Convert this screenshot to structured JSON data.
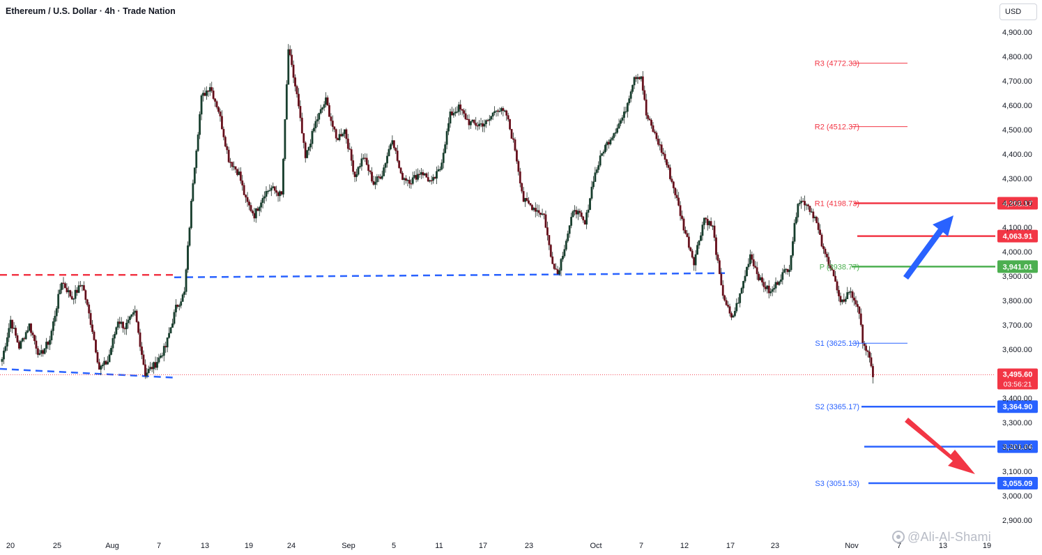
{
  "header": {
    "title": "Ethereum / U.S. Dollar · 4h · Trade Nation",
    "currency": "USD"
  },
  "watermark": "@Ali-Al-Shami",
  "colors": {
    "up": "#0f1a14",
    "down": "#0f1a14",
    "resistance": "#f23645",
    "support": "#2962ff",
    "pivot": "#4caf50",
    "dashed_red": "#f23645",
    "dashed_blue": "#2962ff"
  },
  "chart_data": {
    "type": "candlestick",
    "title": "Ethereum / U.S. Dollar · 4h · Trade Nation",
    "ylim": [
      2850,
      4960
    ],
    "y_ticks": [
      "4,900.00",
      "4,800.00",
      "4,700.00",
      "4,600.00",
      "4,500.00",
      "4,400.00",
      "4,300.00",
      "4,200.00",
      "4,100.00",
      "4,000.00",
      "3,900.00",
      "3,800.00",
      "3,700.00",
      "3,600.00",
      "3,400.00",
      "3,300.00",
      "3,200.00",
      "3,100.00",
      "3,000.00",
      "2,900.00"
    ],
    "x_ticks": [
      "20",
      "25",
      "Aug",
      "7",
      "13",
      "19",
      "24",
      "Sep",
      "5",
      "11",
      "17",
      "23",
      "Oct",
      "7",
      "12",
      "17",
      "23",
      "Nov",
      "7",
      "13",
      "19"
    ],
    "path": [
      [
        0,
        3560
      ],
      [
        5,
        3720
      ],
      [
        10,
        3610
      ],
      [
        16,
        3700
      ],
      [
        22,
        3570
      ],
      [
        28,
        3640
      ],
      [
        35,
        3880
      ],
      [
        41,
        3810
      ],
      [
        47,
        3870
      ],
      [
        53,
        3680
      ],
      [
        57,
        3520
      ],
      [
        62,
        3550
      ],
      [
        68,
        3720
      ],
      [
        72,
        3690
      ],
      [
        78,
        3750
      ],
      [
        84,
        3500
      ],
      [
        90,
        3540
      ],
      [
        96,
        3610
      ],
      [
        102,
        3770
      ],
      [
        107,
        3830
      ],
      [
        112,
        4290
      ],
      [
        117,
        4630
      ],
      [
        122,
        4680
      ],
      [
        127,
        4580
      ],
      [
        133,
        4380
      ],
      [
        139,
        4320
      ],
      [
        143,
        4210
      ],
      [
        148,
        4150
      ],
      [
        154,
        4240
      ],
      [
        158,
        4260
      ],
      [
        164,
        4230
      ],
      [
        168,
        4830
      ],
      [
        173,
        4640
      ],
      [
        178,
        4380
      ],
      [
        184,
        4530
      ],
      [
        190,
        4620
      ],
      [
        196,
        4460
      ],
      [
        201,
        4500
      ],
      [
        207,
        4310
      ],
      [
        212,
        4390
      ],
      [
        218,
        4280
      ],
      [
        223,
        4320
      ],
      [
        229,
        4470
      ],
      [
        234,
        4310
      ],
      [
        240,
        4290
      ],
      [
        246,
        4330
      ],
      [
        252,
        4280
      ],
      [
        257,
        4340
      ],
      [
        263,
        4560
      ],
      [
        268,
        4590
      ],
      [
        274,
        4530
      ],
      [
        279,
        4520
      ],
      [
        285,
        4530
      ],
      [
        290,
        4590
      ],
      [
        296,
        4560
      ],
      [
        301,
        4420
      ],
      [
        306,
        4210
      ],
      [
        312,
        4180
      ],
      [
        318,
        4150
      ],
      [
        322,
        3980
      ],
      [
        326,
        3910
      ],
      [
        331,
        4050
      ],
      [
        336,
        4180
      ],
      [
        342,
        4110
      ],
      [
        347,
        4300
      ],
      [
        353,
        4420
      ],
      [
        359,
        4490
      ],
      [
        365,
        4560
      ],
      [
        371,
        4720
      ],
      [
        375,
        4720
      ],
      [
        378,
        4560
      ],
      [
        383,
        4480
      ],
      [
        389,
        4380
      ],
      [
        395,
        4240
      ],
      [
        400,
        4100
      ],
      [
        406,
        3960
      ],
      [
        412,
        4140
      ],
      [
        417,
        4100
      ],
      [
        422,
        3850
      ],
      [
        428,
        3720
      ],
      [
        433,
        3820
      ],
      [
        439,
        3990
      ],
      [
        445,
        3880
      ],
      [
        451,
        3830
      ],
      [
        457,
        3900
      ],
      [
        462,
        3940
      ],
      [
        467,
        4210
      ],
      [
        472,
        4200
      ],
      [
        477,
        4140
      ],
      [
        482,
        4000
      ],
      [
        487,
        3930
      ],
      [
        492,
        3780
      ],
      [
        497,
        3840
      ],
      [
        502,
        3780
      ],
      [
        505,
        3640
      ],
      [
        508,
        3580
      ],
      [
        511,
        3495
      ]
    ],
    "levels": [
      {
        "name": "R3",
        "label": "R3 (4772.33)",
        "price": 4772.33,
        "color": "#f23645",
        "badge": ""
      },
      {
        "name": "R2",
        "label": "R2 (4512.37)",
        "price": 4512.37,
        "color": "#f23645",
        "badge": ""
      },
      {
        "name": "R1",
        "label": "R1 (4198.73)",
        "price": 4198.73,
        "color": "#f23645",
        "badge": "4,202.17"
      },
      {
        "name": "level-4063",
        "label": "",
        "price": 4063.91,
        "color": "#f23645",
        "badge": "4,063.91"
      },
      {
        "name": "P",
        "label": "P (3938.77)",
        "price": 3938.77,
        "color": "#4caf50",
        "badge": "3,941.01"
      },
      {
        "name": "S1",
        "label": "S1 (3625.13)",
        "price": 3625.13,
        "color": "#2962ff",
        "badge": ""
      },
      {
        "name": "S2",
        "label": "S2 (3365.17)",
        "price": 3365.17,
        "color": "#2962ff",
        "badge": "3,364.90"
      },
      {
        "name": "level-3201",
        "label": "",
        "price": 3201.04,
        "color": "#2962ff",
        "badge": "3,201.04"
      },
      {
        "name": "S3",
        "label": "S3 (3051.53)",
        "price": 3051.53,
        "color": "#2962ff",
        "badge": "3,055.09"
      }
    ],
    "current_price": {
      "value": 3495.6,
      "label": "3,495.60",
      "countdown": "03:56:21"
    }
  }
}
